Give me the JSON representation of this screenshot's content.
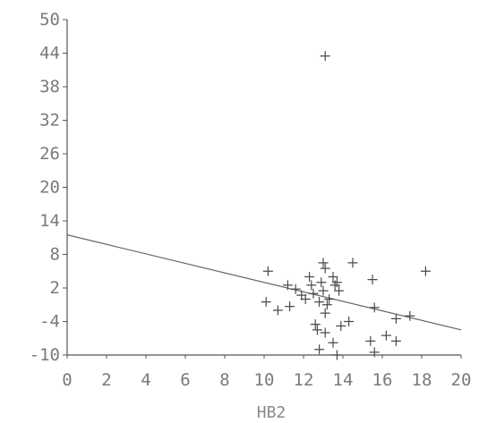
{
  "chart_data": {
    "type": "scatter",
    "title": "",
    "xlabel": "HB2",
    "ylabel": "",
    "xlim": [
      0,
      20
    ],
    "ylim": [
      -10,
      50
    ],
    "x_ticks": [
      "0",
      "2",
      "4",
      "6",
      "8",
      "10",
      "12",
      "14",
      "16",
      "18",
      "20"
    ],
    "y_ticks": [
      "50",
      "44",
      "38",
      "32",
      "26",
      "20",
      "14",
      "8",
      "2",
      "-4",
      "-10"
    ],
    "grid": false,
    "marker": "plus",
    "points": [
      {
        "x": 13.1,
        "y": 43.5
      },
      {
        "x": 10.2,
        "y": 5.0
      },
      {
        "x": 10.1,
        "y": -0.5
      },
      {
        "x": 10.7,
        "y": -2.0
      },
      {
        "x": 11.2,
        "y": 2.5
      },
      {
        "x": 11.3,
        "y": -1.3
      },
      {
        "x": 11.6,
        "y": 1.8
      },
      {
        "x": 11.9,
        "y": 0.7
      },
      {
        "x": 12.1,
        "y": 0.0
      },
      {
        "x": 12.3,
        "y": 4.0
      },
      {
        "x": 12.4,
        "y": 2.5
      },
      {
        "x": 12.5,
        "y": 1.0
      },
      {
        "x": 12.6,
        "y": -4.5
      },
      {
        "x": 12.7,
        "y": -5.5
      },
      {
        "x": 12.8,
        "y": -0.5
      },
      {
        "x": 12.9,
        "y": 3.0
      },
      {
        "x": 13.0,
        "y": 6.5
      },
      {
        "x": 13.1,
        "y": 5.5
      },
      {
        "x": 13.0,
        "y": 1.5
      },
      {
        "x": 13.1,
        "y": -2.5
      },
      {
        "x": 13.1,
        "y": -6.0
      },
      {
        "x": 13.2,
        "y": -1.0
      },
      {
        "x": 13.3,
        "y": 0.0
      },
      {
        "x": 13.5,
        "y": 4.0
      },
      {
        "x": 13.6,
        "y": 2.5
      },
      {
        "x": 13.7,
        "y": 3.0
      },
      {
        "x": 13.8,
        "y": 1.5
      },
      {
        "x": 13.5,
        "y": -7.8
      },
      {
        "x": 13.9,
        "y": -4.8
      },
      {
        "x": 12.8,
        "y": -9.0
      },
      {
        "x": 13.7,
        "y": -10.0
      },
      {
        "x": 14.3,
        "y": -4.0
      },
      {
        "x": 14.5,
        "y": 6.5
      },
      {
        "x": 15.5,
        "y": 3.5
      },
      {
        "x": 15.6,
        "y": -1.5
      },
      {
        "x": 15.4,
        "y": -7.5
      },
      {
        "x": 15.6,
        "y": -9.5
      },
      {
        "x": 16.2,
        "y": -6.5
      },
      {
        "x": 16.7,
        "y": -3.5
      },
      {
        "x": 16.7,
        "y": -7.5
      },
      {
        "x": 17.4,
        "y": -3.0
      },
      {
        "x": 18.2,
        "y": 5.0
      }
    ],
    "regression_line": {
      "x": [
        0,
        20
      ],
      "y": [
        11.5,
        -5.5
      ]
    }
  }
}
